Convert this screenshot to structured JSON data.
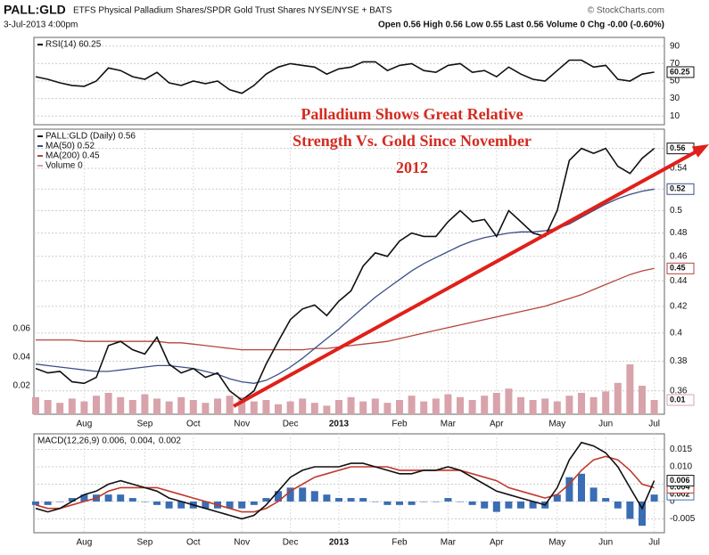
{
  "header": {
    "symbol": "PALL:GLD",
    "description": "ETFS Physical Palladium Shares/SPDR Gold Trust Shares NYSE/NYSE + BATS",
    "source": "© StockCharts.com",
    "date": "3-Jul-2013 4:00pm",
    "quote": "Open 0.56 High 0.56 Low 0.55 Last 0.56 Volume 0 Chg -0.00 (-0.60%)"
  },
  "annotation": [
    "Palladium Shows Great Relative",
    "Strength Vs. Gold Since November",
    "2012"
  ],
  "chart_data": [
    {
      "type": "line",
      "ylim": [
        0,
        100
      ],
      "yticks": [
        10,
        30,
        50,
        70,
        90
      ],
      "grid": true,
      "legend": "upper left",
      "series": [
        {
          "name": "RSI(14) 60.25",
          "color": "#111111",
          "type": "line",
          "last": 60.25,
          "values": [
            55,
            52,
            48,
            45,
            44,
            50,
            65,
            62,
            55,
            52,
            60,
            48,
            45,
            50,
            47,
            50,
            40,
            36,
            45,
            58,
            66,
            70,
            68,
            66,
            58,
            64,
            66,
            72,
            72,
            62,
            68,
            70,
            62,
            60,
            68,
            70,
            60,
            62,
            55,
            66,
            58,
            52,
            50,
            62,
            74,
            74,
            66,
            68,
            52,
            50,
            58,
            60.25
          ]
        }
      ]
    },
    {
      "type": "line",
      "log_scale": true,
      "ylim": [
        0.345,
        0.58
      ],
      "yticks": [
        0.36,
        0.38,
        0.4,
        0.42,
        0.44,
        0.46,
        0.48,
        0.5,
        0.52,
        0.54,
        0.56
      ],
      "y2lim": [
        0,
        0.2
      ],
      "y2ticks": [
        0.02,
        0.04,
        0.06
      ],
      "grid": true,
      "legend": "upper left",
      "categories": [
        null,
        null,
        null,
        null,
        "Aug",
        null,
        null,
        null,
        null,
        "Sep",
        null,
        null,
        null,
        "Oct",
        null,
        null,
        null,
        "Nov",
        null,
        null,
        null,
        "Dec",
        null,
        null,
        null,
        "2013",
        null,
        null,
        null,
        null,
        "Feb",
        null,
        null,
        null,
        "Mar",
        null,
        null,
        null,
        "Apr",
        null,
        null,
        null,
        null,
        "May",
        null,
        null,
        null,
        "Jun",
        null,
        null,
        null,
        "Jul"
      ],
      "series": [
        {
          "name": "Volume 0",
          "color": "#d8a3ab",
          "type": "bar",
          "axis": "y2",
          "last": 0.01,
          "values": [
            0.012,
            0.01,
            0.008,
            0.011,
            0.009,
            0.013,
            0.015,
            0.012,
            0.01,
            0.014,
            0.011,
            0.009,
            0.012,
            0.01,
            0.008,
            0.011,
            0.013,
            0.012,
            0.009,
            0.01,
            0.007,
            0.009,
            0.011,
            0.008,
            0.006,
            0.01,
            0.012,
            0.009,
            0.011,
            0.008,
            0.01,
            0.013,
            0.009,
            0.011,
            0.014,
            0.012,
            0.01,
            0.013,
            0.015,
            0.018,
            0.012,
            0.01,
            0.011,
            0.009,
            0.013,
            0.015,
            0.012,
            0.016,
            0.022,
            0.035,
            0.02,
            0.01
          ]
        },
        {
          "name": "MA(200) 0.45",
          "color": "#b4463f",
          "type": "line",
          "last": 0.45,
          "values": [
            0.395,
            0.395,
            0.395,
            0.395,
            0.394,
            0.394,
            0.394,
            0.394,
            0.394,
            0.394,
            0.394,
            0.393,
            0.393,
            0.392,
            0.391,
            0.39,
            0.389,
            0.388,
            0.388,
            0.388,
            0.388,
            0.388,
            0.388,
            0.389,
            0.389,
            0.39,
            0.391,
            0.392,
            0.393,
            0.394,
            0.396,
            0.398,
            0.4,
            0.402,
            0.404,
            0.406,
            0.408,
            0.41,
            0.412,
            0.414,
            0.416,
            0.418,
            0.42,
            0.423,
            0.426,
            0.429,
            0.433,
            0.437,
            0.441,
            0.445,
            0.448,
            0.45
          ]
        },
        {
          "name": "MA(50) 0.52",
          "color": "#3b4f86",
          "type": "line",
          "last": 0.52,
          "values": [
            0.378,
            0.377,
            0.376,
            0.375,
            0.374,
            0.373,
            0.373,
            0.374,
            0.375,
            0.376,
            0.377,
            0.377,
            0.376,
            0.375,
            0.373,
            0.371,
            0.368,
            0.366,
            0.365,
            0.367,
            0.371,
            0.376,
            0.382,
            0.389,
            0.396,
            0.403,
            0.411,
            0.419,
            0.427,
            0.434,
            0.441,
            0.448,
            0.454,
            0.459,
            0.464,
            0.469,
            0.473,
            0.476,
            0.478,
            0.48,
            0.481,
            0.481,
            0.482,
            0.484,
            0.488,
            0.494,
            0.5,
            0.506,
            0.511,
            0.515,
            0.518,
            0.52
          ]
        },
        {
          "name": "PALL:GLD (Daily) 0.56",
          "color": "#111111",
          "type": "line",
          "last": 0.56,
          "values": [
            0.375,
            0.372,
            0.373,
            0.366,
            0.365,
            0.369,
            0.391,
            0.394,
            0.388,
            0.385,
            0.397,
            0.378,
            0.372,
            0.375,
            0.369,
            0.372,
            0.36,
            0.354,
            0.36,
            0.378,
            0.394,
            0.41,
            0.418,
            0.421,
            0.413,
            0.424,
            0.432,
            0.452,
            0.463,
            0.46,
            0.473,
            0.48,
            0.477,
            0.477,
            0.49,
            0.5,
            0.49,
            0.492,
            0.477,
            0.5,
            0.49,
            0.48,
            0.477,
            0.5,
            0.548,
            0.56,
            0.555,
            0.56,
            0.542,
            0.535,
            0.55,
            0.56
          ]
        }
      ]
    },
    {
      "type": "line",
      "ylim": [
        -0.009,
        0.0195
      ],
      "yticks": [
        -0.005,
        0,
        0.005,
        {
          "value": 0.01,
          "label": "0.010"
        },
        0.015
      ],
      "grid": true,
      "legend": "upper left",
      "legend_orientation": "horizontal",
      "categories": [
        null,
        null,
        null,
        null,
        "Aug",
        null,
        null,
        null,
        null,
        "Sep",
        null,
        null,
        null,
        "Oct",
        null,
        null,
        null,
        "Nov",
        null,
        null,
        null,
        "Dec",
        null,
        null,
        null,
        "2013",
        null,
        null,
        null,
        null,
        "Feb",
        null,
        null,
        null,
        "Mar",
        null,
        null,
        null,
        "Apr",
        null,
        null,
        null,
        null,
        "May",
        null,
        null,
        null,
        "Jun",
        null,
        null,
        null,
        "Jul"
      ],
      "series": [
        {
          "name": "0.002",
          "color": "#3a6db3",
          "type": "bar",
          "last": 0.002,
          "values": [
            -0.001,
            -0.001,
            0,
            0.001,
            0.002,
            0.002,
            0.002,
            0.002,
            0.001,
            0,
            -0.001,
            -0.002,
            -0.002,
            -0.002,
            -0.002,
            -0.002,
            -0.002,
            -0.002,
            -0.001,
            0.001,
            0.003,
            0.004,
            0.004,
            0.003,
            0.002,
            0.001,
            0.001,
            0.001,
            0,
            -0.001,
            -0.001,
            -0.001,
            0,
            0,
            0.001,
            0,
            -0.001,
            -0.002,
            -0.003,
            -0.002,
            -0.002,
            -0.002,
            -0.002,
            0.002,
            0.007,
            0.008,
            0.004,
            0.001,
            -0.002,
            -0.005,
            -0.007,
            0.002
          ]
        },
        {
          "name": "0.004,",
          "color": "#c0392b",
          "type": "line",
          "last": 0.004,
          "values": [
            -0.001,
            -0.002,
            -0.002,
            -0.001,
            0,
            0.001,
            0.003,
            0.004,
            0.004,
            0.004,
            0.004,
            0.003,
            0.002,
            0.001,
            0,
            -0.001,
            -0.002,
            -0.003,
            -0.003,
            -0.002,
            0,
            0.003,
            0.005,
            0.007,
            0.008,
            0.009,
            0.01,
            0.01,
            0.01,
            0.01,
            0.009,
            0.009,
            0.009,
            0.009,
            0.009,
            0.009,
            0.008,
            0.007,
            0.006,
            0.004,
            0.003,
            0.002,
            0.001,
            0.002,
            0.005,
            0.009,
            0.012,
            0.013,
            0.012,
            0.009,
            0.005,
            0.004
          ]
        },
        {
          "name": "MACD(12,26,9) 0.006,",
          "color": "#111111",
          "type": "line",
          "last": 0.006,
          "values": [
            -0.002,
            -0.003,
            -0.002,
            0,
            0.002,
            0.003,
            0.005,
            0.006,
            0.005,
            0.004,
            0.003,
            0.001,
            0,
            -0.001,
            -0.002,
            -0.003,
            -0.004,
            -0.005,
            -0.004,
            -0.001,
            0.003,
            0.007,
            0.009,
            0.01,
            0.01,
            0.01,
            0.011,
            0.011,
            0.01,
            0.009,
            0.008,
            0.008,
            0.009,
            0.009,
            0.01,
            0.009,
            0.007,
            0.005,
            0.003,
            0.002,
            0.001,
            0,
            -0.001,
            0.004,
            0.012,
            0.017,
            0.016,
            0.014,
            0.01,
            0.004,
            -0.002,
            0.006
          ]
        }
      ]
    }
  ]
}
